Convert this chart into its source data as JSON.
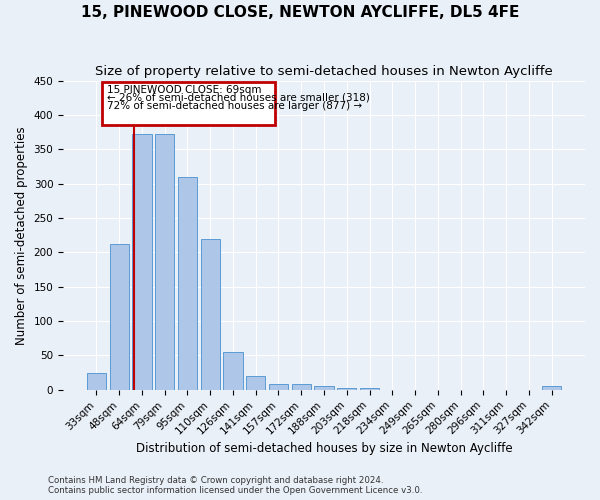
{
  "title": "15, PINEWOOD CLOSE, NEWTON AYCLIFFE, DL5 4FE",
  "subtitle": "Size of property relative to semi-detached houses in Newton Aycliffe",
  "xlabel": "Distribution of semi-detached houses by size in Newton Aycliffe",
  "ylabel": "Number of semi-detached properties",
  "footnote1": "Contains HM Land Registry data © Crown copyright and database right 2024.",
  "footnote2": "Contains public sector information licensed under the Open Government Licence v3.0.",
  "bar_labels": [
    "33sqm",
    "48sqm",
    "64sqm",
    "79sqm",
    "95sqm",
    "110sqm",
    "126sqm",
    "141sqm",
    "157sqm",
    "172sqm",
    "188sqm",
    "203sqm",
    "218sqm",
    "234sqm",
    "249sqm",
    "265sqm",
    "280sqm",
    "296sqm",
    "311sqm",
    "327sqm",
    "342sqm"
  ],
  "bar_values": [
    25,
    212,
    372,
    372,
    310,
    220,
    55,
    20,
    8,
    8,
    5,
    3,
    3,
    0,
    0,
    0,
    0,
    0,
    0,
    0,
    5
  ],
  "bar_color": "#aec6e8",
  "bar_edge_color": "#5b9bd5",
  "vline_x_pos": 1.65,
  "vline_color": "#c00000",
  "annotation_title": "15 PINEWOOD CLOSE: 69sqm",
  "annotation_line1": "← 26% of semi-detached houses are smaller (318)",
  "annotation_line2": "72% of semi-detached houses are larger (877) →",
  "annotation_box_color": "#c00000",
  "ylim": [
    0,
    450
  ],
  "yticks": [
    0,
    50,
    100,
    150,
    200,
    250,
    300,
    350,
    400,
    450
  ],
  "bg_color": "#eaf0f8",
  "plot_bg_color": "#eaf0f8",
  "title_fontsize": 11,
  "subtitle_fontsize": 9.5,
  "axis_label_fontsize": 8.5,
  "tick_fontsize": 7.5
}
